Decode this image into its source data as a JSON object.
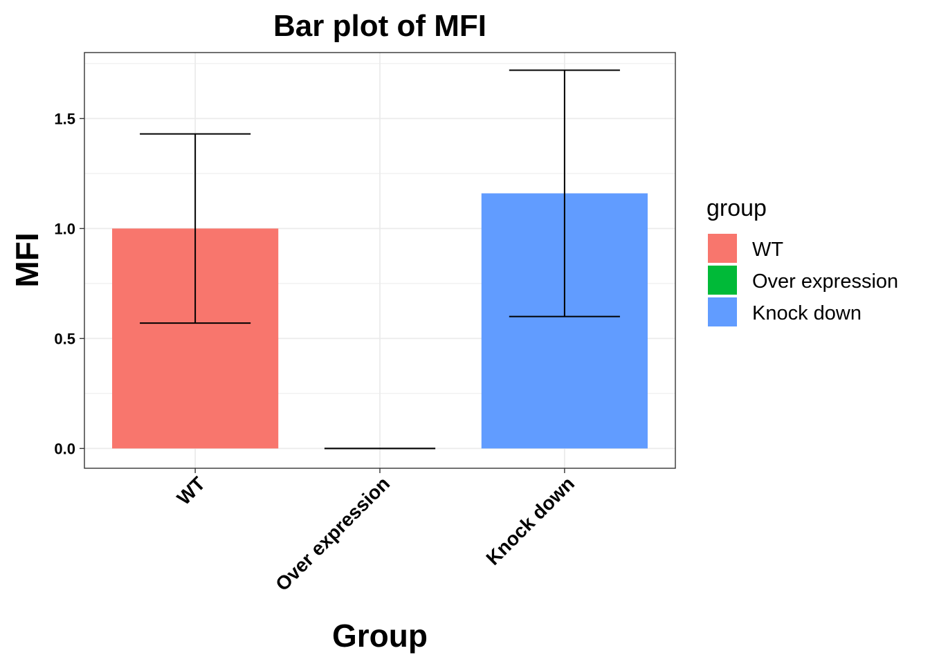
{
  "chart_data": {
    "type": "bar",
    "title": "Bar plot of MFI",
    "xlabel": "Group",
    "ylabel": "MFI",
    "categories": [
      "WT",
      "Over expression",
      "Knock down"
    ],
    "values": [
      1.0,
      0.0,
      1.16
    ],
    "error_bars": [
      {
        "lower": 0.57,
        "upper": 1.43
      },
      {
        "lower": 0.0,
        "upper": 0.0
      },
      {
        "lower": 0.6,
        "upper": 1.72
      }
    ],
    "colors": [
      "#F8766D",
      "#00BA38",
      "#619CFF"
    ],
    "ylim": [
      -0.09,
      1.8
    ],
    "yticks": [
      0.0,
      0.5,
      1.0,
      1.5
    ],
    "ytick_labels": [
      "0.0",
      "0.5",
      "1.0",
      "1.5"
    ],
    "grid": true,
    "legend": {
      "title": "group",
      "position": "right",
      "items": [
        "WT",
        "Over expression",
        "Knock down"
      ]
    }
  }
}
